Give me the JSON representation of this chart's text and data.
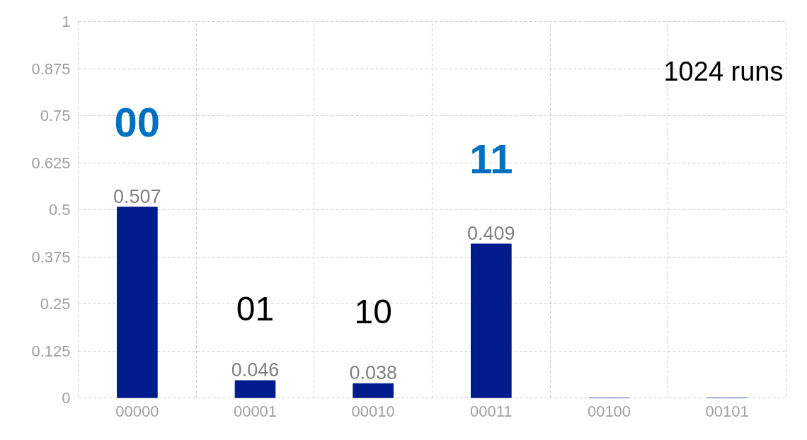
{
  "chart_data": {
    "type": "bar",
    "categories": [
      "00000",
      "00001",
      "00010",
      "00011",
      "00100",
      "00101"
    ],
    "values": [
      0.507,
      0.046,
      0.038,
      0.409,
      0,
      0
    ],
    "value_labels": [
      "0.507",
      "0.046",
      "0.038",
      "0.409",
      null,
      null
    ],
    "color": "#001b8c",
    "ylim": [
      0,
      1
    ],
    "yticks": [
      {
        "value": 0,
        "label": "0"
      },
      0.125,
      0.25,
      0.375,
      0.5,
      0.625,
      0.75,
      0.875,
      1
    ],
    "grid": true,
    "annotations": [
      "00",
      "01",
      "10",
      "11",
      "1024 runs"
    ]
  }
}
